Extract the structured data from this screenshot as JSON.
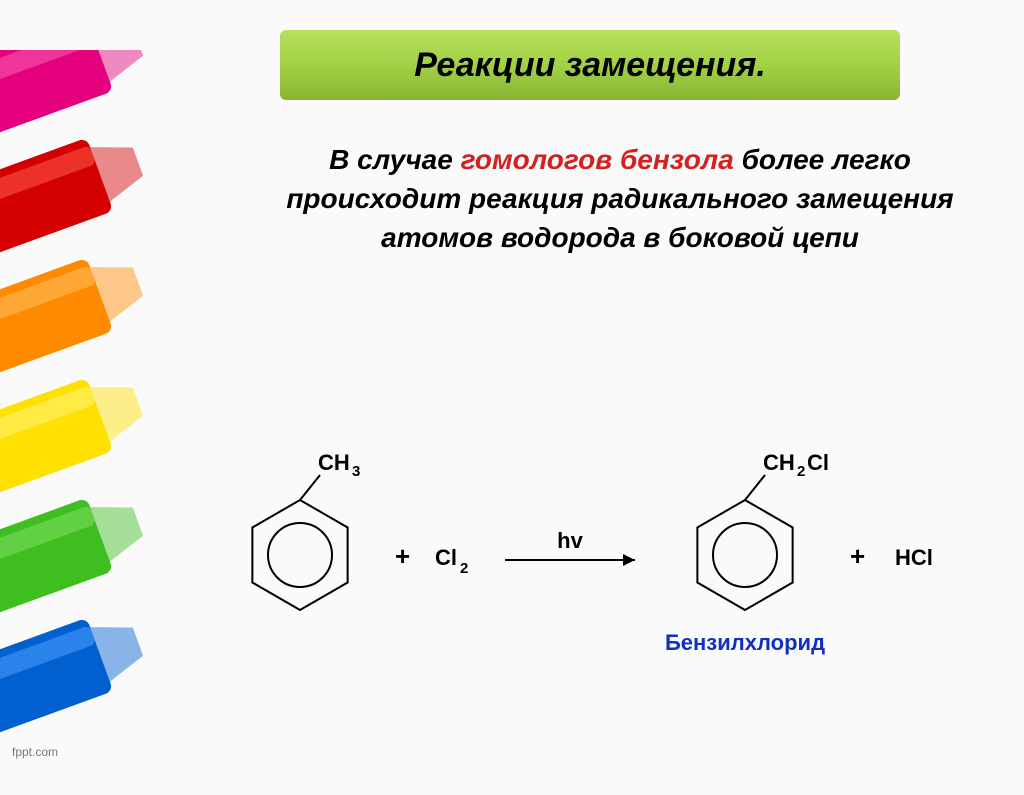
{
  "title": "Реакции замещения.",
  "body": {
    "prefix": "В случае ",
    "red": "гомологов бензола",
    "rest": " более легко происходит реакция радикального замещения атомов водорода в боковой цепи"
  },
  "reaction": {
    "reagent1_substituent": "CH",
    "reagent1_substituent_sub": "3",
    "plus1": "+",
    "halogen": "Cl",
    "halogen_sub": "2",
    "arrow_label": "hv",
    "product_substituent": "CH",
    "product_substituent_sub1": "2",
    "product_substituent_tail": "Cl",
    "plus2": "+",
    "byproduct": "HCl",
    "product_name": "Бензилхлорид",
    "colors": {
      "stroke": "#000000",
      "text": "#000000",
      "product_name_color": "#1030c0"
    },
    "ring_radius_outer": 55,
    "ring_radius_inner": 32,
    "line_width": 2,
    "font_size": 22,
    "arrow_length": 130
  },
  "markers": [
    {
      "fill": "#e5007e",
      "highlight": "#f95fb0"
    },
    {
      "fill": "#d40000",
      "highlight": "#ff5a4a"
    },
    {
      "fill": "#ff8a00",
      "highlight": "#ffc060"
    },
    {
      "fill": "#ffe000",
      "highlight": "#fff47a"
    },
    {
      "fill": "#3fbf1f",
      "highlight": "#7ee060"
    },
    {
      "fill": "#0060d0",
      "highlight": "#4aa0ff"
    }
  ],
  "footer": "fppt.com"
}
